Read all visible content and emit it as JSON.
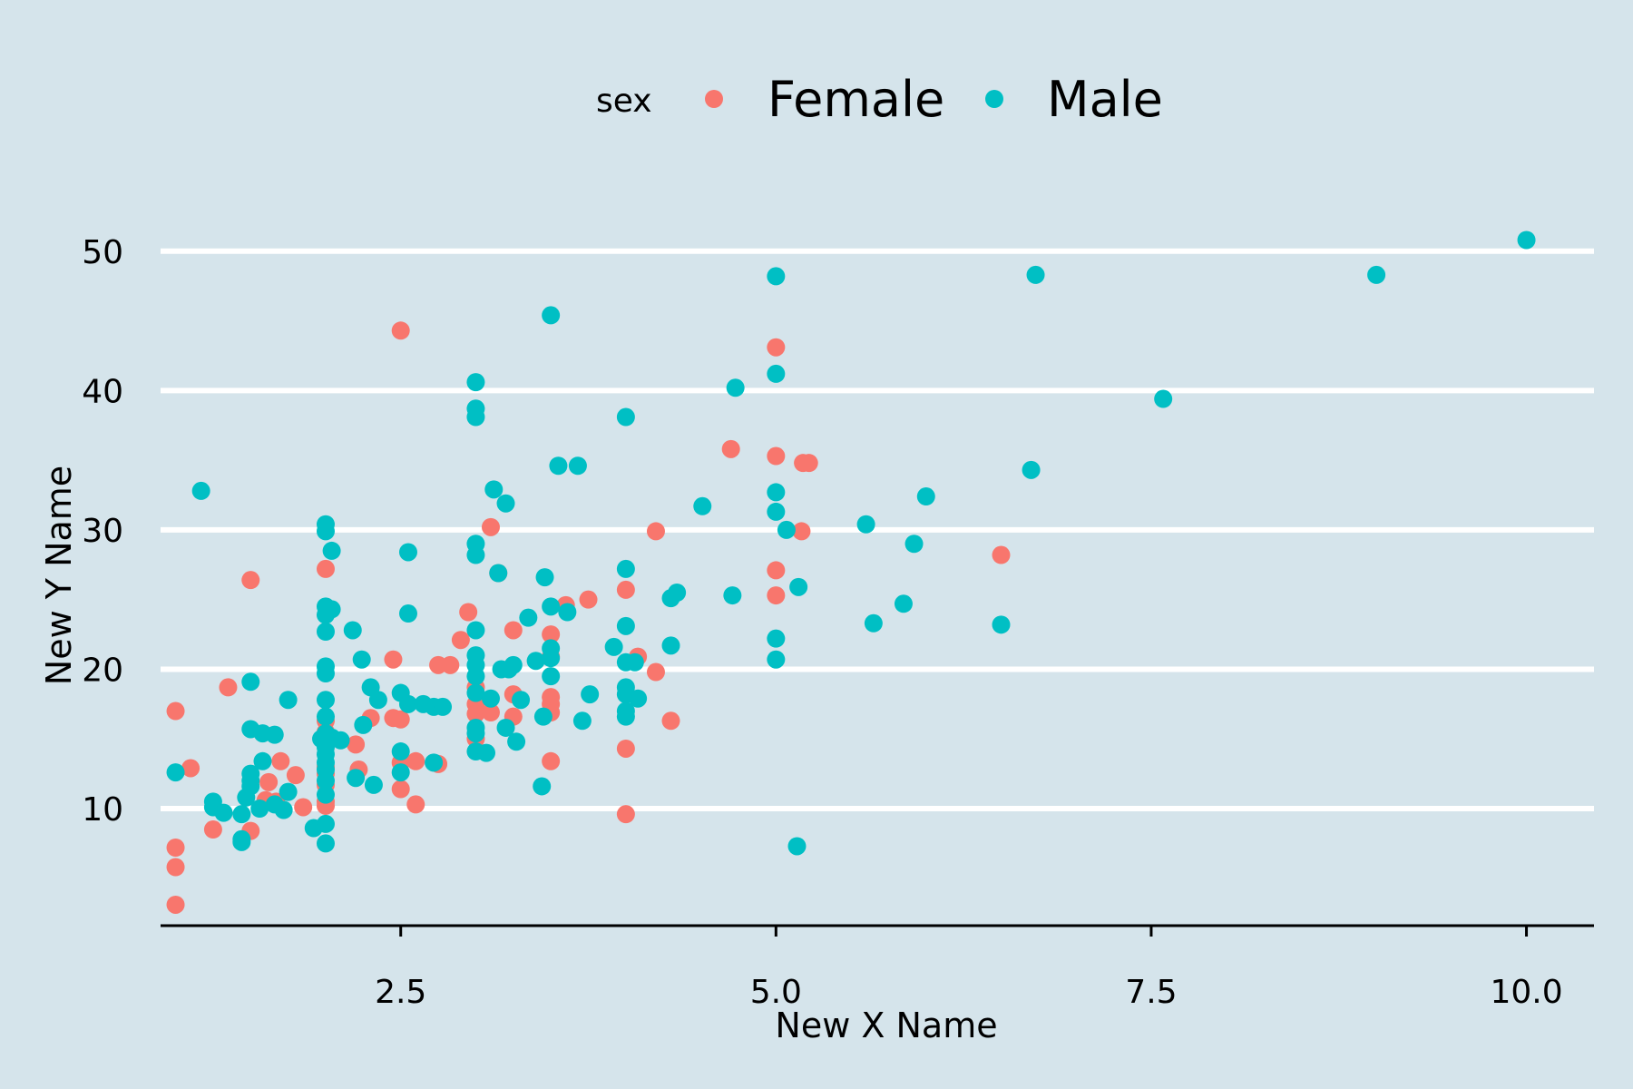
{
  "chart_data": {
    "type": "scatter",
    "xlabel": "New X Name",
    "ylabel": "New Y Name",
    "xlim": [
      0.9,
      10.45
    ],
    "ylim": [
      1.6,
      55
    ],
    "x_ticks": [
      2.5,
      5.0,
      7.5,
      10.0
    ],
    "x_tick_labels": [
      "2.5",
      "5.0",
      "7.5",
      "10.0"
    ],
    "y_ticks": [
      10,
      20,
      30,
      40,
      50
    ],
    "y_tick_labels": [
      "10",
      "20",
      "30",
      "40",
      "50"
    ],
    "grid": "horizontal major lines only",
    "legend": {
      "title": "sex",
      "position": "top",
      "entries": [
        {
          "label": "Female",
          "color": "#f8766d"
        },
        {
          "label": "Male",
          "color": "#00bfc4"
        }
      ]
    },
    "series": [
      {
        "name": "Female",
        "color": "#f8766d",
        "points": [
          [
            1.0,
            17.0
          ],
          [
            1.0,
            7.2
          ],
          [
            1.0,
            5.8
          ],
          [
            1.0,
            3.1
          ],
          [
            1.1,
            12.9
          ],
          [
            1.25,
            8.5
          ],
          [
            1.35,
            18.7
          ],
          [
            1.5,
            26.4
          ],
          [
            1.5,
            8.4
          ],
          [
            1.6,
            10.6
          ],
          [
            1.62,
            11.9
          ],
          [
            1.67,
            10.5
          ],
          [
            1.7,
            13.4
          ],
          [
            1.8,
            12.4
          ],
          [
            1.85,
            10.1
          ],
          [
            2.0,
            27.2
          ],
          [
            2.0,
            16.3
          ],
          [
            2.0,
            15.5
          ],
          [
            2.0,
            13.0
          ],
          [
            2.0,
            12.5
          ],
          [
            2.0,
            11.7
          ],
          [
            2.0,
            10.5
          ],
          [
            2.0,
            10.2
          ],
          [
            2.2,
            14.6
          ],
          [
            2.22,
            12.8
          ],
          [
            2.3,
            16.5
          ],
          [
            2.45,
            20.7
          ],
          [
            2.45,
            16.5
          ],
          [
            2.5,
            16.4
          ],
          [
            2.5,
            13.3
          ],
          [
            2.5,
            11.4
          ],
          [
            2.5,
            44.3
          ],
          [
            2.6,
            13.4
          ],
          [
            2.6,
            10.3
          ],
          [
            2.75,
            20.3
          ],
          [
            2.83,
            20.3
          ],
          [
            2.75,
            13.2
          ],
          [
            2.9,
            22.1
          ],
          [
            2.95,
            24.1
          ],
          [
            3.0,
            18.7
          ],
          [
            3.0,
            17.5
          ],
          [
            3.0,
            16.8
          ],
          [
            3.0,
            15.0
          ],
          [
            3.1,
            30.2
          ],
          [
            3.1,
            16.9
          ],
          [
            3.15,
            26.9
          ],
          [
            3.25,
            22.8
          ],
          [
            3.25,
            18.2
          ],
          [
            3.25,
            16.6
          ],
          [
            3.5,
            22.5
          ],
          [
            3.5,
            20.9
          ],
          [
            3.5,
            18.0
          ],
          [
            3.5,
            17.5
          ],
          [
            3.5,
            16.9
          ],
          [
            3.5,
            13.4
          ],
          [
            3.6,
            24.6
          ],
          [
            3.75,
            25.0
          ],
          [
            4.0,
            25.7
          ],
          [
            4.0,
            14.3
          ],
          [
            4.0,
            9.6
          ],
          [
            4.08,
            20.9
          ],
          [
            4.2,
            29.9
          ],
          [
            4.2,
            19.8
          ],
          [
            4.3,
            16.3
          ],
          [
            4.7,
            35.8
          ],
          [
            5.0,
            43.1
          ],
          [
            5.0,
            35.3
          ],
          [
            5.0,
            27.1
          ],
          [
            5.0,
            25.3
          ],
          [
            5.17,
            29.9
          ],
          [
            5.18,
            34.8
          ],
          [
            5.22,
            34.8
          ],
          [
            6.5,
            28.2
          ]
        ]
      },
      {
        "name": "Male",
        "color": "#00bfc4",
        "points": [
          [
            1.0,
            12.6
          ],
          [
            1.17,
            32.8
          ],
          [
            1.25,
            10.5
          ],
          [
            1.25,
            10.1
          ],
          [
            1.32,
            9.7
          ],
          [
            1.44,
            7.6
          ],
          [
            1.44,
            7.8
          ],
          [
            1.44,
            9.6
          ],
          [
            1.47,
            10.8
          ],
          [
            1.5,
            19.1
          ],
          [
            1.5,
            15.7
          ],
          [
            1.5,
            12.5
          ],
          [
            1.5,
            12.0
          ],
          [
            1.5,
            11.6
          ],
          [
            1.56,
            10.0
          ],
          [
            1.58,
            15.4
          ],
          [
            1.58,
            13.4
          ],
          [
            1.66,
            15.3
          ],
          [
            1.66,
            10.3
          ],
          [
            1.75,
            17.8
          ],
          [
            1.75,
            11.2
          ],
          [
            1.72,
            9.9
          ],
          [
            1.92,
            8.6
          ],
          [
            1.97,
            15.0
          ],
          [
            2.0,
            30.4
          ],
          [
            2.0,
            29.9
          ],
          [
            2.0,
            24.5
          ],
          [
            2.0,
            23.9
          ],
          [
            2.0,
            22.7
          ],
          [
            2.0,
            20.2
          ],
          [
            2.0,
            19.7
          ],
          [
            2.0,
            17.8
          ],
          [
            2.0,
            16.6
          ],
          [
            2.0,
            15.4
          ],
          [
            2.0,
            14.9
          ],
          [
            2.0,
            14.4
          ],
          [
            2.0,
            13.9
          ],
          [
            2.0,
            13.3
          ],
          [
            2.0,
            12.8
          ],
          [
            2.0,
            12.0
          ],
          [
            2.0,
            11.0
          ],
          [
            2.0,
            8.9
          ],
          [
            2.0,
            7.5
          ],
          [
            2.04,
            24.3
          ],
          [
            2.04,
            28.5
          ],
          [
            2.04,
            15.1
          ],
          [
            2.1,
            14.9
          ],
          [
            2.18,
            22.8
          ],
          [
            2.2,
            12.2
          ],
          [
            2.24,
            20.7
          ],
          [
            2.25,
            16.0
          ],
          [
            2.3,
            18.7
          ],
          [
            2.32,
            11.7
          ],
          [
            2.35,
            17.8
          ],
          [
            2.5,
            18.3
          ],
          [
            2.5,
            14.1
          ],
          [
            2.5,
            12.6
          ],
          [
            2.55,
            28.4
          ],
          [
            2.55,
            24.0
          ],
          [
            2.55,
            17.5
          ],
          [
            2.65,
            17.5
          ],
          [
            2.72,
            17.3
          ],
          [
            2.78,
            17.3
          ],
          [
            2.72,
            13.3
          ],
          [
            3.0,
            40.6
          ],
          [
            3.0,
            38.7
          ],
          [
            3.0,
            38.1
          ],
          [
            3.0,
            29.0
          ],
          [
            3.0,
            28.2
          ],
          [
            3.0,
            22.8
          ],
          [
            3.0,
            21.0
          ],
          [
            3.0,
            20.3
          ],
          [
            3.0,
            19.5
          ],
          [
            3.0,
            18.3
          ],
          [
            3.0,
            15.8
          ],
          [
            3.0,
            15.4
          ],
          [
            3.0,
            14.1
          ],
          [
            3.07,
            14.0
          ],
          [
            3.1,
            17.9
          ],
          [
            3.12,
            32.9
          ],
          [
            3.15,
            26.9
          ],
          [
            3.17,
            20.0
          ],
          [
            3.2,
            31.9
          ],
          [
            3.2,
            15.8
          ],
          [
            3.22,
            20.0
          ],
          [
            3.25,
            20.3
          ],
          [
            3.27,
            14.8
          ],
          [
            3.3,
            17.8
          ],
          [
            3.35,
            23.7
          ],
          [
            3.4,
            20.6
          ],
          [
            3.44,
            11.6
          ],
          [
            3.45,
            16.6
          ],
          [
            3.46,
            26.6
          ],
          [
            3.5,
            45.4
          ],
          [
            3.5,
            24.5
          ],
          [
            3.5,
            21.5
          ],
          [
            3.5,
            20.8
          ],
          [
            3.5,
            19.5
          ],
          [
            3.55,
            34.6
          ],
          [
            3.61,
            24.1
          ],
          [
            3.68,
            34.6
          ],
          [
            3.71,
            16.3
          ],
          [
            3.76,
            18.2
          ],
          [
            3.92,
            21.6
          ],
          [
            4.0,
            38.1
          ],
          [
            4.0,
            27.2
          ],
          [
            4.0,
            23.1
          ],
          [
            4.0,
            20.5
          ],
          [
            4.0,
            18.7
          ],
          [
            4.0,
            18.2
          ],
          [
            4.0,
            17.0
          ],
          [
            4.0,
            16.6
          ],
          [
            4.06,
            20.5
          ],
          [
            4.08,
            17.9
          ],
          [
            4.3,
            25.1
          ],
          [
            4.34,
            25.5
          ],
          [
            4.3,
            21.7
          ],
          [
            4.51,
            31.7
          ],
          [
            4.71,
            25.3
          ],
          [
            4.73,
            40.2
          ],
          [
            5.0,
            48.2
          ],
          [
            5.0,
            41.2
          ],
          [
            5.0,
            32.7
          ],
          [
            5.0,
            31.3
          ],
          [
            5.0,
            22.2
          ],
          [
            5.0,
            20.7
          ],
          [
            5.07,
            30.0
          ],
          [
            5.14,
            7.3
          ],
          [
            5.15,
            25.9
          ],
          [
            5.6,
            30.4
          ],
          [
            5.65,
            23.3
          ],
          [
            5.85,
            24.7
          ],
          [
            5.92,
            29.0
          ],
          [
            6.0,
            32.4
          ],
          [
            6.5,
            23.2
          ],
          [
            6.7,
            34.3
          ],
          [
            6.73,
            48.3
          ],
          [
            7.58,
            39.4
          ],
          [
            9.0,
            48.3
          ],
          [
            10.0,
            50.8
          ]
        ]
      }
    ]
  }
}
